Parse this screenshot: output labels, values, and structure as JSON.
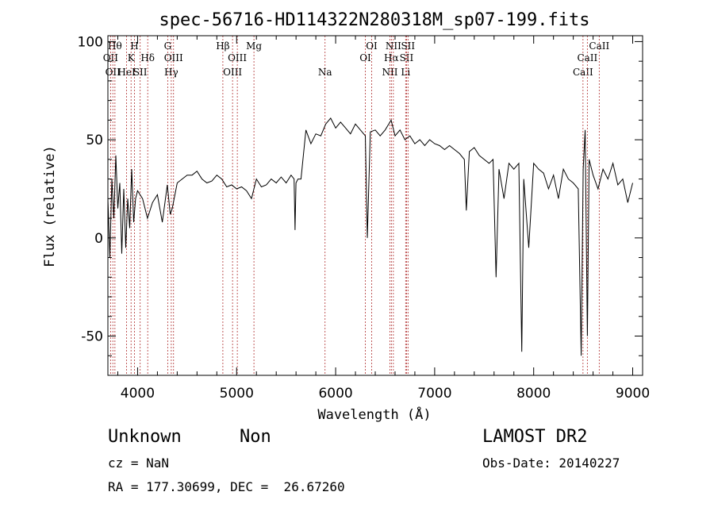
{
  "chart_data": {
    "type": "line",
    "title": "spec-56716-HD114322N280318M_sp07-199.fits",
    "xlabel": "Wavelength (Å)",
    "ylabel": "Flux (relative)",
    "xlim": [
      3700,
      9100
    ],
    "ylim": [
      -70,
      103
    ],
    "xticks": [
      4000,
      5000,
      6000,
      7000,
      8000,
      9000
    ],
    "yticks": [
      -50,
      0,
      50,
      100
    ],
    "grid": false,
    "line_color": "#000000",
    "marker_color": "#b03030",
    "series": [
      {
        "x": [
          3700,
          3720,
          3740,
          3760,
          3780,
          3800,
          3820,
          3840,
          3860,
          3880,
          3900,
          3920,
          3940,
          3960,
          3980,
          4000,
          4050,
          4100,
          4150,
          4200,
          4250,
          4300,
          4330,
          4350,
          4400,
          4450,
          4500,
          4550,
          4600,
          4650,
          4700,
          4750,
          4800,
          4850,
          4900,
          4950,
          5000,
          5050,
          5100,
          5150,
          5200,
          5250,
          5300,
          5350,
          5400,
          5450,
          5500,
          5550,
          5580,
          5590,
          5600,
          5620,
          5650,
          5700,
          5750,
          5800,
          5850,
          5900,
          5950,
          6000,
          6050,
          6100,
          6150,
          6200,
          6250,
          6300,
          6320,
          6350,
          6400,
          6450,
          6500,
          6560,
          6600,
          6650,
          6700,
          6750,
          6800,
          6850,
          6900,
          6950,
          7000,
          7050,
          7100,
          7150,
          7200,
          7250,
          7300,
          7320,
          7350,
          7400,
          7450,
          7500,
          7550,
          7590,
          7620,
          7650,
          7700,
          7750,
          7800,
          7850,
          7880,
          7900,
          7950,
          8000,
          8050,
          8100,
          8150,
          8200,
          8250,
          8300,
          8350,
          8400,
          8450,
          8480,
          8500,
          8520,
          8542,
          8560,
          8600,
          8650,
          8700,
          8750,
          8800,
          8850,
          8900,
          8950,
          9000
        ],
        "values": [
          20,
          -10,
          30,
          10,
          42,
          15,
          28,
          -8,
          25,
          -5,
          20,
          5,
          35,
          8,
          20,
          24,
          20,
          10,
          18,
          22,
          8,
          27,
          12,
          15,
          28,
          30,
          32,
          32,
          34,
          30,
          28,
          29,
          32,
          30,
          26,
          27,
          25,
          26,
          24,
          20,
          30,
          26,
          27,
          30,
          28,
          31,
          28,
          32,
          30,
          4,
          28,
          30,
          30,
          55,
          48,
          53,
          52,
          58,
          61,
          56,
          59,
          56,
          53,
          58,
          55,
          52,
          0,
          54,
          55,
          52,
          55,
          60,
          52,
          55,
          50,
          52,
          48,
          50,
          47,
          50,
          48,
          47,
          45,
          47,
          45,
          43,
          40,
          14,
          44,
          46,
          42,
          40,
          38,
          40,
          -20,
          35,
          20,
          38,
          35,
          38,
          -58,
          30,
          -5,
          38,
          35,
          33,
          25,
          32,
          20,
          35,
          30,
          28,
          25,
          -60,
          35,
          55,
          -50,
          40,
          32,
          25,
          35,
          30,
          38,
          27,
          30,
          18,
          28
        ]
      }
    ],
    "lines": [
      {
        "w": 3771,
        "label": "Hθ",
        "row": 1
      },
      {
        "w": 3727,
        "label": "OII",
        "row": 2
      },
      {
        "w": 3750,
        "label": "OII",
        "row": 3
      },
      {
        "w": 3889,
        "label": "HeI",
        "row": 3
      },
      {
        "w": 3934,
        "label": "K",
        "row": 2
      },
      {
        "w": 3968,
        "label": "H",
        "row": 1
      },
      {
        "w": 4026,
        "label": "SII",
        "row": 3
      },
      {
        "w": 4102,
        "label": "Hδ",
        "row": 2
      },
      {
        "w": 4304,
        "label": "G",
        "row": 1
      },
      {
        "w": 4340,
        "label": "Hγ",
        "row": 3
      },
      {
        "w": 4363,
        "label": "OIII",
        "row": 2
      },
      {
        "w": 4861,
        "label": "Hβ",
        "row": 1
      },
      {
        "w": 4959,
        "label": "OIII",
        "row": 3
      },
      {
        "w": 5007,
        "label": "OIII",
        "row": 2
      },
      {
        "w": 5175,
        "label": "Mg",
        "row": 1
      },
      {
        "w": 5893,
        "label": "Na",
        "row": 3
      },
      {
        "w": 6300,
        "label": "OI",
        "row": 2
      },
      {
        "w": 6364,
        "label": "OI",
        "row": 1
      },
      {
        "w": 6548,
        "label": "NII",
        "row": 3
      },
      {
        "w": 6563,
        "label": "Hα",
        "row": 2
      },
      {
        "w": 6583,
        "label": "NII",
        "row": 1
      },
      {
        "w": 6707,
        "label": "Li",
        "row": 3
      },
      {
        "w": 6716,
        "label": "SII",
        "row": 2
      },
      {
        "w": 6731,
        "label": "SII",
        "row": 1
      },
      {
        "w": 8498,
        "label": "CaII",
        "row": 3
      },
      {
        "w": 8542,
        "label": "CaII",
        "row": 2
      },
      {
        "w": 8662,
        "label": "CaII",
        "row": 1
      }
    ]
  },
  "footer": {
    "object_class": "Unknown",
    "subclass": "Non",
    "survey": "LAMOST DR2",
    "cz": "cz = NaN",
    "obs_date": "Obs-Date: 20140227",
    "coords": "RA = 177.30699, DEC =  26.67260"
  }
}
